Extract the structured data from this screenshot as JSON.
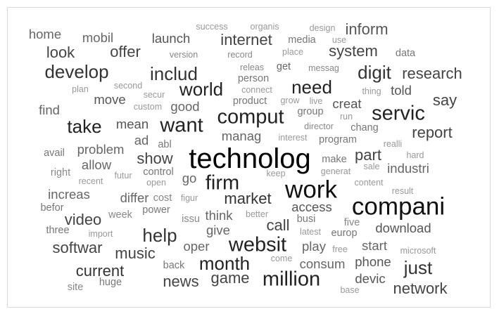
{
  "cloud": {
    "words": [
      {
        "text": "success",
        "weight": 1,
        "color": "#999999"
      },
      {
        "text": "organis",
        "weight": 1,
        "color": "#999999"
      },
      {
        "text": "design",
        "weight": 1,
        "color": "#999999"
      },
      {
        "text": "inform",
        "weight": 4,
        "color": "#555555"
      },
      {
        "text": "home",
        "weight": 3,
        "color": "#666666"
      },
      {
        "text": "mobil",
        "weight": 3,
        "color": "#666666"
      },
      {
        "text": "launch",
        "weight": 3,
        "color": "#555555"
      },
      {
        "text": "internet",
        "weight": 4,
        "color": "#444444"
      },
      {
        "text": "media",
        "weight": 2,
        "color": "#777777"
      },
      {
        "text": "use",
        "weight": 1,
        "color": "#999999"
      },
      {
        "text": "look",
        "weight": 4,
        "color": "#444444"
      },
      {
        "text": "offer",
        "weight": 4,
        "color": "#444444"
      },
      {
        "text": "version",
        "weight": 1,
        "color": "#888888"
      },
      {
        "text": "record",
        "weight": 1,
        "color": "#888888"
      },
      {
        "text": "place",
        "weight": 1,
        "color": "#999999"
      },
      {
        "text": "system",
        "weight": 4,
        "color": "#444444"
      },
      {
        "text": "data",
        "weight": 2,
        "color": "#777777"
      },
      {
        "text": "develop",
        "weight": 5,
        "color": "#333333"
      },
      {
        "text": "includ",
        "weight": 5,
        "color": "#333333"
      },
      {
        "text": "releas",
        "weight": 1,
        "color": "#888888"
      },
      {
        "text": "get",
        "weight": 2,
        "color": "#666666"
      },
      {
        "text": "messag",
        "weight": 1,
        "color": "#888888"
      },
      {
        "text": "digit",
        "weight": 5,
        "color": "#333333"
      },
      {
        "text": "research",
        "weight": 4,
        "color": "#444444"
      },
      {
        "text": "person",
        "weight": 2,
        "color": "#777777"
      },
      {
        "text": "plan",
        "weight": 1,
        "color": "#999999"
      },
      {
        "text": "second",
        "weight": 1,
        "color": "#999999"
      },
      {
        "text": "world",
        "weight": 5,
        "color": "#222222"
      },
      {
        "text": "need",
        "weight": 5,
        "color": "#222222"
      },
      {
        "text": "connect",
        "weight": 1,
        "color": "#999999"
      },
      {
        "text": "thing",
        "weight": 1,
        "color": "#999999"
      },
      {
        "text": "told",
        "weight": 3,
        "color": "#555555"
      },
      {
        "text": "secur",
        "weight": 1,
        "color": "#999999"
      },
      {
        "text": "move",
        "weight": 3,
        "color": "#555555"
      },
      {
        "text": "product",
        "weight": 2,
        "color": "#777777"
      },
      {
        "text": "grow",
        "weight": 1,
        "color": "#999999"
      },
      {
        "text": "live",
        "weight": 1,
        "color": "#999999"
      },
      {
        "text": "creat",
        "weight": 3,
        "color": "#555555"
      },
      {
        "text": "say",
        "weight": 4,
        "color": "#444444"
      },
      {
        "text": "find",
        "weight": 3,
        "color": "#666666"
      },
      {
        "text": "custom",
        "weight": 1,
        "color": "#999999"
      },
      {
        "text": "good",
        "weight": 3,
        "color": "#666666"
      },
      {
        "text": "group",
        "weight": 2,
        "color": "#777777"
      },
      {
        "text": "servic",
        "weight": 6,
        "color": "#222222"
      },
      {
        "text": "comput",
        "weight": 6,
        "color": "#222222"
      },
      {
        "text": "run",
        "weight": 1,
        "color": "#999999"
      },
      {
        "text": "take",
        "weight": 5,
        "color": "#222222"
      },
      {
        "text": "mean",
        "weight": 3,
        "color": "#555555"
      },
      {
        "text": "want",
        "weight": 6,
        "color": "#222222"
      },
      {
        "text": "director",
        "weight": 1,
        "color": "#888888"
      },
      {
        "text": "chang",
        "weight": 2,
        "color": "#777777"
      },
      {
        "text": "report",
        "weight": 4,
        "color": "#444444"
      },
      {
        "text": "ad",
        "weight": 3,
        "color": "#666666"
      },
      {
        "text": "manag",
        "weight": 3,
        "color": "#666666"
      },
      {
        "text": "interest",
        "weight": 1,
        "color": "#999999"
      },
      {
        "text": "program",
        "weight": 2,
        "color": "#777777"
      },
      {
        "text": "avail",
        "weight": 2,
        "color": "#777777"
      },
      {
        "text": "problem",
        "weight": 3,
        "color": "#666666"
      },
      {
        "text": "abl",
        "weight": 2,
        "color": "#777777"
      },
      {
        "text": "realli",
        "weight": 1,
        "color": "#999999"
      },
      {
        "text": "show",
        "weight": 4,
        "color": "#444444"
      },
      {
        "text": "technolog",
        "weight": 9,
        "color": "#000000"
      },
      {
        "text": "part",
        "weight": 4,
        "color": "#444444"
      },
      {
        "text": "hard",
        "weight": 1,
        "color": "#999999"
      },
      {
        "text": "allow",
        "weight": 3,
        "color": "#666666"
      },
      {
        "text": "make",
        "weight": 2,
        "color": "#777777"
      },
      {
        "text": "sale",
        "weight": 1,
        "color": "#999999"
      },
      {
        "text": "industri",
        "weight": 3,
        "color": "#666666"
      },
      {
        "text": "right",
        "weight": 2,
        "color": "#888888"
      },
      {
        "text": "futur",
        "weight": 1,
        "color": "#999999"
      },
      {
        "text": "control",
        "weight": 2,
        "color": "#777777"
      },
      {
        "text": "keep",
        "weight": 1,
        "color": "#999999"
      },
      {
        "text": "generat",
        "weight": 1,
        "color": "#999999"
      },
      {
        "text": "recent",
        "weight": 1,
        "color": "#999999"
      },
      {
        "text": "open",
        "weight": 1,
        "color": "#999999"
      },
      {
        "text": "go",
        "weight": 3,
        "color": "#666666"
      },
      {
        "text": "firm",
        "weight": 6,
        "color": "#222222"
      },
      {
        "text": "work",
        "weight": 7,
        "color": "#111111"
      },
      {
        "text": "content",
        "weight": 1,
        "color": "#999999"
      },
      {
        "text": "increas",
        "weight": 3,
        "color": "#666666"
      },
      {
        "text": "differ",
        "weight": 3,
        "color": "#666666"
      },
      {
        "text": "cost",
        "weight": 2,
        "color": "#888888"
      },
      {
        "text": "figur",
        "weight": 1,
        "color": "#999999"
      },
      {
        "text": "result",
        "weight": 1,
        "color": "#999999"
      },
      {
        "text": "befor",
        "weight": 2,
        "color": "#777777"
      },
      {
        "text": "market",
        "weight": 4,
        "color": "#333333"
      },
      {
        "text": "access",
        "weight": 3,
        "color": "#555555"
      },
      {
        "text": "compani",
        "weight": 7,
        "color": "#111111"
      },
      {
        "text": "power",
        "weight": 2,
        "color": "#777777"
      },
      {
        "text": "busi",
        "weight": 2,
        "color": "#777777"
      },
      {
        "text": "video",
        "weight": 4,
        "color": "#444444"
      },
      {
        "text": "week",
        "weight": 2,
        "color": "#888888"
      },
      {
        "text": "issu",
        "weight": 2,
        "color": "#888888"
      },
      {
        "text": "think",
        "weight": 3,
        "color": "#666666"
      },
      {
        "text": "better",
        "weight": 1,
        "color": "#999999"
      },
      {
        "text": "five",
        "weight": 2,
        "color": "#888888"
      },
      {
        "text": "three",
        "weight": 2,
        "color": "#777777"
      },
      {
        "text": "import",
        "weight": 1,
        "color": "#999999"
      },
      {
        "text": "give",
        "weight": 3,
        "color": "#666666"
      },
      {
        "text": "call",
        "weight": 4,
        "color": "#444444"
      },
      {
        "text": "latest",
        "weight": 1,
        "color": "#999999"
      },
      {
        "text": "europ",
        "weight": 2,
        "color": "#777777"
      },
      {
        "text": "download",
        "weight": 3,
        "color": "#555555"
      },
      {
        "text": "help",
        "weight": 5,
        "color": "#333333"
      },
      {
        "text": "softwar",
        "weight": 4,
        "color": "#444444"
      },
      {
        "text": "oper",
        "weight": 3,
        "color": "#666666"
      },
      {
        "text": "websit",
        "weight": 6,
        "color": "#222222"
      },
      {
        "text": "play",
        "weight": 3,
        "color": "#666666"
      },
      {
        "text": "free",
        "weight": 1,
        "color": "#999999"
      },
      {
        "text": "start",
        "weight": 3,
        "color": "#666666"
      },
      {
        "text": "microsoft",
        "weight": 1,
        "color": "#999999"
      },
      {
        "text": "music",
        "weight": 4,
        "color": "#444444"
      },
      {
        "text": "come",
        "weight": 1,
        "color": "#999999"
      },
      {
        "text": "consum",
        "weight": 3,
        "color": "#666666"
      },
      {
        "text": "phone",
        "weight": 3,
        "color": "#555555"
      },
      {
        "text": "current",
        "weight": 4,
        "color": "#333333"
      },
      {
        "text": "back",
        "weight": 2,
        "color": "#777777"
      },
      {
        "text": "month",
        "weight": 5,
        "color": "#222222"
      },
      {
        "text": "just",
        "weight": 5,
        "color": "#333333"
      },
      {
        "text": "game",
        "weight": 4,
        "color": "#444444"
      },
      {
        "text": "million",
        "weight": 6,
        "color": "#222222"
      },
      {
        "text": "devic",
        "weight": 3,
        "color": "#555555"
      },
      {
        "text": "huge",
        "weight": 2,
        "color": "#777777"
      },
      {
        "text": "news",
        "weight": 4,
        "color": "#444444"
      },
      {
        "text": "site",
        "weight": 2,
        "color": "#888888"
      },
      {
        "text": "base",
        "weight": 1,
        "color": "#999999"
      },
      {
        "text": "network",
        "weight": 4,
        "color": "#444444"
      }
    ]
  }
}
